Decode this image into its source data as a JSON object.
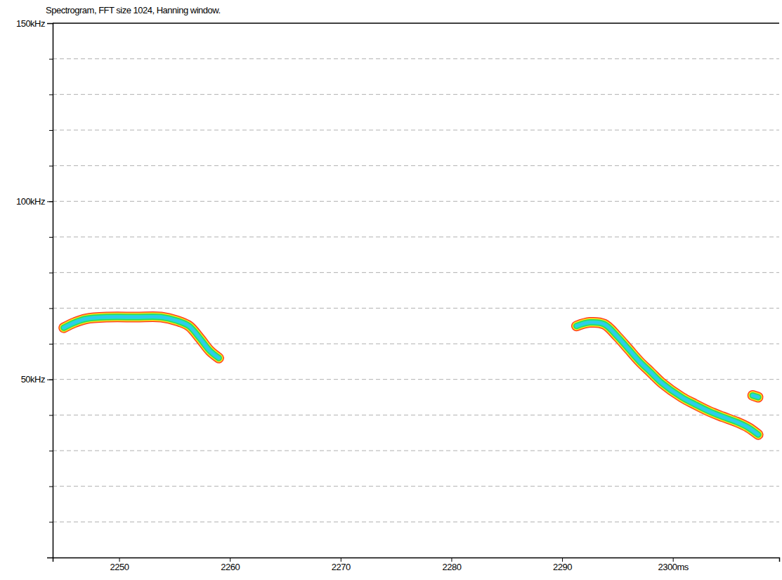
{
  "chart_data": {
    "type": "spectrogram",
    "title": "Spectrogram, FFT size 1024, Hanning window.",
    "series": [
      {
        "x": [
          2245.0,
          2246.0,
          2247.0,
          2249.0,
          2251.5,
          2253.8,
          2255.2,
          2256.3,
          2257.3,
          2258.2,
          2259.0
        ],
        "values": [
          64.5,
          66.0,
          67.0,
          67.5,
          67.5,
          67.5,
          66.5,
          65.0,
          61.5,
          58.0,
          56.0
        ]
      },
      {
        "x": [
          2291.3,
          2292.5,
          2293.8,
          2295.0,
          2296.0,
          2297.0,
          2298.0,
          2299.0,
          2300.8,
          2302.0,
          2303.3,
          2304.5,
          2305.8,
          2306.8,
          2307.7
        ],
        "values": [
          65.0,
          66.0,
          65.5,
          62.0,
          58.5,
          55.0,
          52.0,
          49.0,
          45.0,
          43.0,
          41.0,
          39.5,
          38.0,
          36.5,
          34.5
        ]
      },
      {
        "x": [
          2307.2,
          2307.7
        ],
        "values": [
          45.5,
          45.0
        ]
      }
    ],
    "xlim": [
      2244,
      2309.6
    ],
    "xticks": [
      2250,
      2260,
      2270,
      2280,
      2290,
      {
        "value": 2300,
        "label": "2300ms"
      }
    ],
    "ylim": [
      0,
      150
    ],
    "yticks": [
      {
        "value": 50,
        "label": "50kHz"
      },
      {
        "value": 100,
        "label": "100kHz"
      },
      {
        "value": 150,
        "label": "150kHz"
      }
    ],
    "yminor": [
      10,
      20,
      30,
      40,
      50,
      60,
      70,
      80,
      90,
      100,
      110,
      120,
      130,
      140
    ],
    "grid": true
  }
}
